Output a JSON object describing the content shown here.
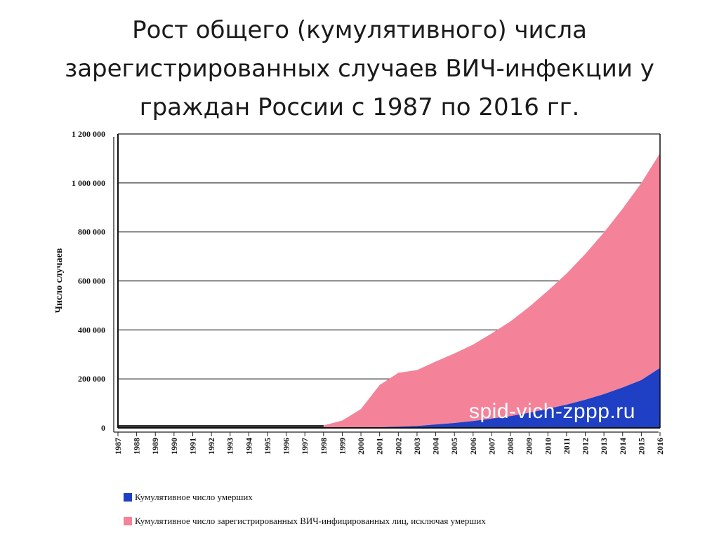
{
  "page": {
    "title": "Рост общего (кумулятивного) числа зарегистрированных случаев ВИЧ-инфекции у граждан России с 1987 по 2016 гг."
  },
  "chart_data": {
    "type": "area",
    "ylabel": "Число случаев",
    "ylim": [
      0,
      1200000
    ],
    "yticks": [
      0,
      200000,
      400000,
      600000,
      800000,
      1000000,
      1200000
    ],
    "ytick_labels": [
      "0",
      "200 000",
      "400 000",
      "600 000",
      "800 000",
      "1 000 000",
      "1 200 000"
    ],
    "categories": [
      "1987",
      "1988",
      "1989",
      "1990",
      "1991",
      "1992",
      "1993",
      "1994",
      "1995",
      "1996",
      "1997",
      "1998",
      "1999",
      "2000",
      "2001",
      "2002",
      "2003",
      "2004",
      "2005",
      "2006",
      "2007",
      "2008",
      "2009",
      "2010",
      "2011",
      "2012",
      "2013",
      "2014",
      "2015",
      "2016"
    ],
    "series": [
      {
        "name": "Кумулятивное число умерших",
        "color": "#1f3fc4",
        "values": [
          0,
          0,
          0,
          0,
          0,
          0,
          0,
          0,
          0,
          0,
          0,
          0,
          1000,
          2000,
          3000,
          5000,
          8000,
          14000,
          20000,
          28000,
          38000,
          48000,
          62000,
          78000,
          95000,
          115000,
          138000,
          165000,
          195000,
          245000
        ]
      },
      {
        "name": "Кумулятивное число зарегистрированных ВИЧ-инфицированных лиц, исключая умерших",
        "color": "#f4839a",
        "values": [
          0,
          0,
          0,
          0,
          0,
          0,
          0,
          0,
          0,
          0,
          0,
          10000,
          29000,
          75000,
          172000,
          220000,
          228000,
          257000,
          284000,
          312000,
          348000,
          387000,
          432000,
          482000,
          535000,
          595000,
          660000,
          730000,
          805000,
          877000
        ]
      }
    ],
    "legend": "bottom",
    "watermark": "spid-vich-zppp.ru"
  }
}
